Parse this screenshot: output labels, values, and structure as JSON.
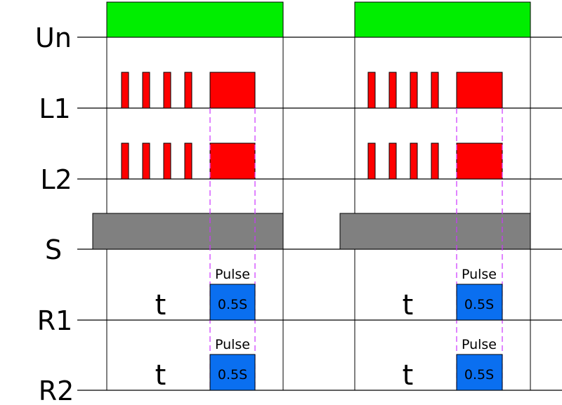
{
  "rows": [
    {
      "label": "Un"
    },
    {
      "label": "L1"
    },
    {
      "label": "L2"
    },
    {
      "label": "S"
    },
    {
      "label": "R1"
    },
    {
      "label": "R2"
    }
  ],
  "annotations": {
    "pulse": "Pulse",
    "duration": "0.5S",
    "delay": "t"
  }
}
